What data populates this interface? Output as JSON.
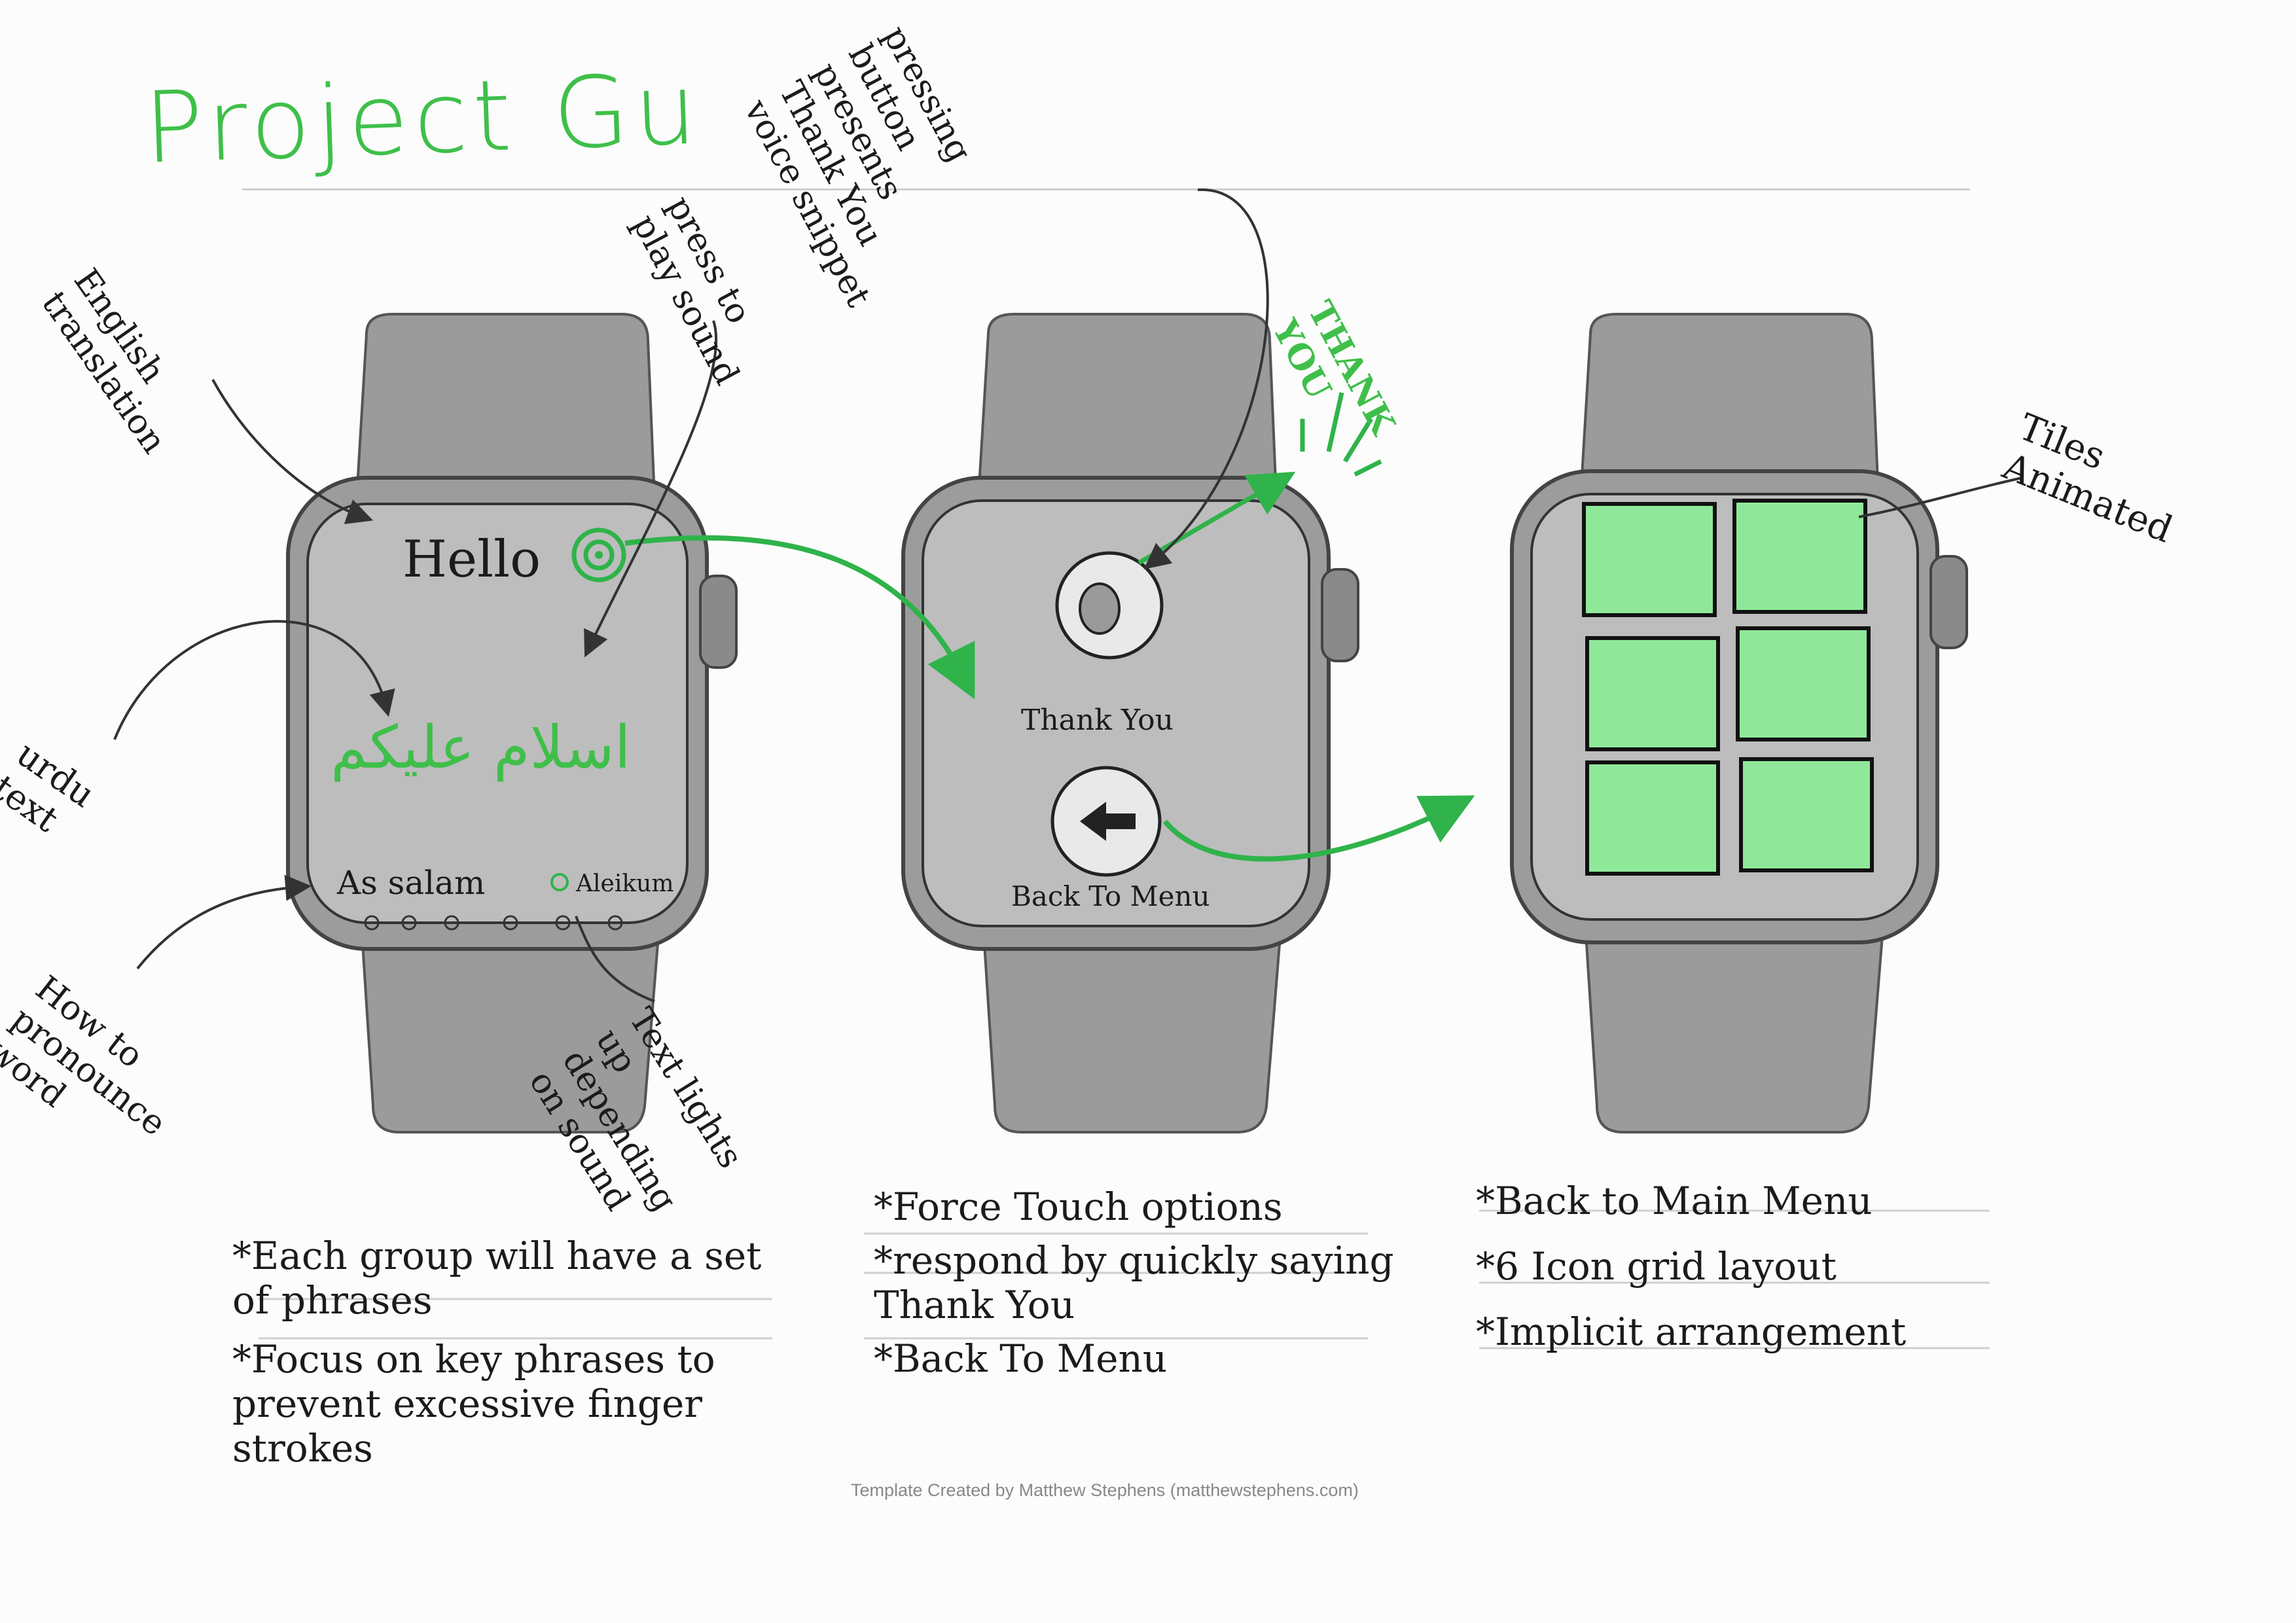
{
  "title": "Project Gu",
  "watch1": {
    "hello": "Hello",
    "urdu": "اسلام علیکم",
    "pronounce_left": "As salam",
    "pronounce_right": "Aleikum"
  },
  "watch2": {
    "thank_you_label": "Thank You",
    "back_label": "Back To Menu"
  },
  "thank_you_burst": "THANK YOU",
  "annotations": {
    "english": "English translation",
    "press_play": "press to play sound",
    "urdu_text": "urdu text",
    "pronounce": "How to pronounce word",
    "lights_up": "Text lights up depending on sound",
    "pressing_button": "pressing button presents Thank You voice snippet",
    "tiles": "Tiles Animated"
  },
  "notes": {
    "col1": [
      "*Each group will have a set of phrases",
      "*Focus on key phrases to prevent excessive finger strokes"
    ],
    "col2": [
      "*Force Touch options",
      "*respond by quickly saying Thank You",
      "*Back To Menu"
    ],
    "col3": [
      "*Back to Main Menu",
      "*6 Icon grid layout",
      "*Implicit arrangement"
    ]
  },
  "credit": "Template Created by Matthew Stephens (matthewstephens.com)",
  "colors": {
    "accent_green": "#3fbf4a",
    "tile_green": "#8fe89a"
  }
}
